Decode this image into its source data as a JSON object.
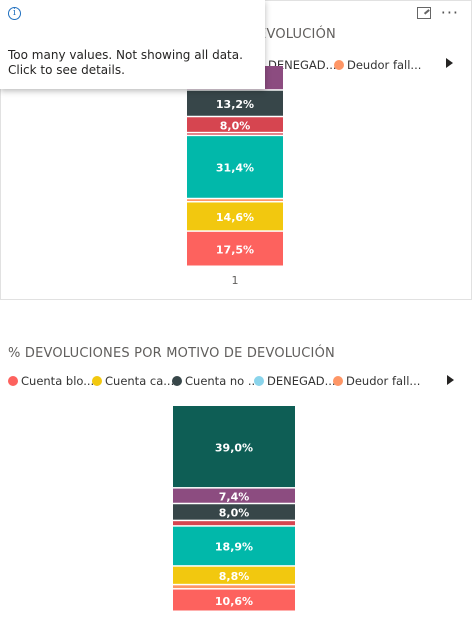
{
  "tooltip": {
    "icon": "info-icon",
    "message": "Too many values. Not showing all data. Click to see details."
  },
  "header_icons": [
    "drag-grip-icon",
    "focus-mode-icon",
    "more-options-icon"
  ],
  "chart_data": [
    {
      "type": "bar",
      "stacked": "100%",
      "title": "% DEVOLUCIONES POR MOTIVO DE DEVOLUCIÓN",
      "categories": [
        "1"
      ],
      "legend": [
        "DENEGAD...",
        "Deudor fall..."
      ],
      "legend_colors": [
        "#8ad4eb",
        "#fe9666"
      ],
      "series": [
        {
          "value": 17.5,
          "label": "17,5%",
          "color": "#fd625e"
        },
        {
          "value": 14.6,
          "label": "14,6%",
          "color": "#f2c80f"
        },
        {
          "value": 1.6,
          "label": "",
          "color": "#fe9666"
        },
        {
          "value": 31.4,
          "label": "31,4%",
          "color": "#01b8aa"
        },
        {
          "value": 1.4,
          "label": "",
          "color": "#d64550"
        },
        {
          "value": 8.0,
          "label": "8,0%",
          "color": "#d64550"
        },
        {
          "value": 13.2,
          "label": "13,2%",
          "color": "#374649"
        },
        {
          "value": 12.3,
          "label": "12,3%",
          "color": "#8c4c80"
        }
      ]
    },
    {
      "type": "bar",
      "stacked": "100%",
      "title": "% DEVOLUCIONES POR MOTIVO DE DEVOLUCIÓN",
      "legend": [
        "Cuenta blo...",
        "Cuenta ca...",
        "Cuenta no ...",
        "DENEGAD...",
        "Deudor fall..."
      ],
      "legend_colors": [
        "#fd625e",
        "#f2c80f",
        "#374649",
        "#8ad4eb",
        "#fe9666"
      ],
      "series": [
        {
          "value": 10.6,
          "label": "10,6%",
          "color": "#fd625e"
        },
        {
          "value": 2.0,
          "label": "",
          "color": "#fe9666"
        },
        {
          "value": 8.8,
          "label": "8,8%",
          "color": "#f2c80f"
        },
        {
          "value": 18.9,
          "label": "18,9%",
          "color": "#01b8aa"
        },
        {
          "value": 2.6,
          "label": "",
          "color": "#d64550"
        },
        {
          "value": 8.0,
          "label": "8,0%",
          "color": "#374649"
        },
        {
          "value": 7.4,
          "label": "7,4%",
          "color": "#8c4c80"
        },
        {
          "value": 39.0,
          "label": "39,0%",
          "color": "#0e5e55"
        }
      ]
    }
  ]
}
